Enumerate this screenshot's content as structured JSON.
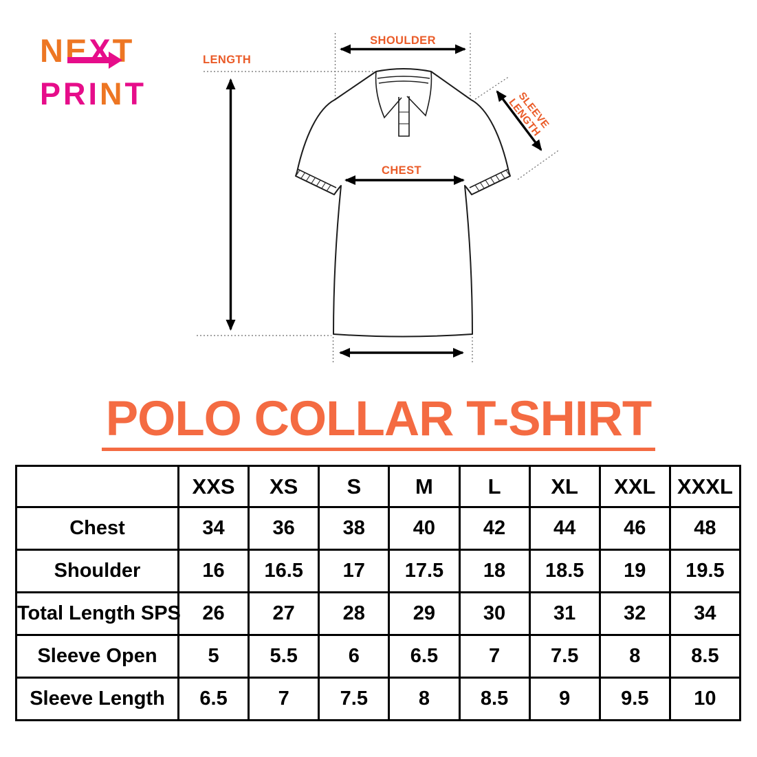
{
  "logo": {
    "line1": [
      {
        "ch": "N",
        "color": "orange"
      },
      {
        "ch": "E",
        "color": "orange"
      },
      {
        "ch": "X",
        "color": "pink"
      },
      {
        "ch": "T",
        "color": "orange"
      }
    ],
    "line2": [
      {
        "ch": "P",
        "color": "pink"
      },
      {
        "ch": "R",
        "color": "pink"
      },
      {
        "ch": "I",
        "color": "pink"
      },
      {
        "ch": "N",
        "color": "orange"
      },
      {
        "ch": "T",
        "color": "pink"
      }
    ]
  },
  "diagram": {
    "shoulder_label": "SHOULDER",
    "length_label": "LENGTH",
    "chest_label": "CHEST",
    "sleeve_label_line1": "SLEEVE",
    "sleeve_label_line2": "LENGTH"
  },
  "title": {
    "text": "POLO COLLAR T-SHIRT"
  },
  "size_table": {
    "columns": [
      "XXS",
      "XS",
      "S",
      "M",
      "L",
      "XL",
      "XXL",
      "XXXL"
    ],
    "rows": [
      {
        "label": "Chest",
        "values": [
          "34",
          "36",
          "38",
          "40",
          "42",
          "44",
          "46",
          "48"
        ]
      },
      {
        "label": "Shoulder",
        "values": [
          "16",
          "16.5",
          "17",
          "17.5",
          "18",
          "18.5",
          "19",
          "19.5"
        ]
      },
      {
        "label": "Total Length SPS",
        "values": [
          "26",
          "27",
          "28",
          "29",
          "30",
          "31",
          "32",
          "34"
        ]
      },
      {
        "label": "Sleeve Open",
        "values": [
          "5",
          "5.5",
          "6",
          "6.5",
          "7",
          "7.5",
          "8",
          "8.5"
        ]
      },
      {
        "label": "Sleeve Length",
        "values": [
          "6.5",
          "7",
          "7.5",
          "8",
          "8.5",
          "9",
          "9.5",
          "10"
        ]
      }
    ]
  },
  "colors": {
    "logo_orange": "#ED7623",
    "logo_pink": "#E60D8A",
    "label_orange": "#EA5B28",
    "title_orange": "#F46B42",
    "line_black": "#111111"
  }
}
